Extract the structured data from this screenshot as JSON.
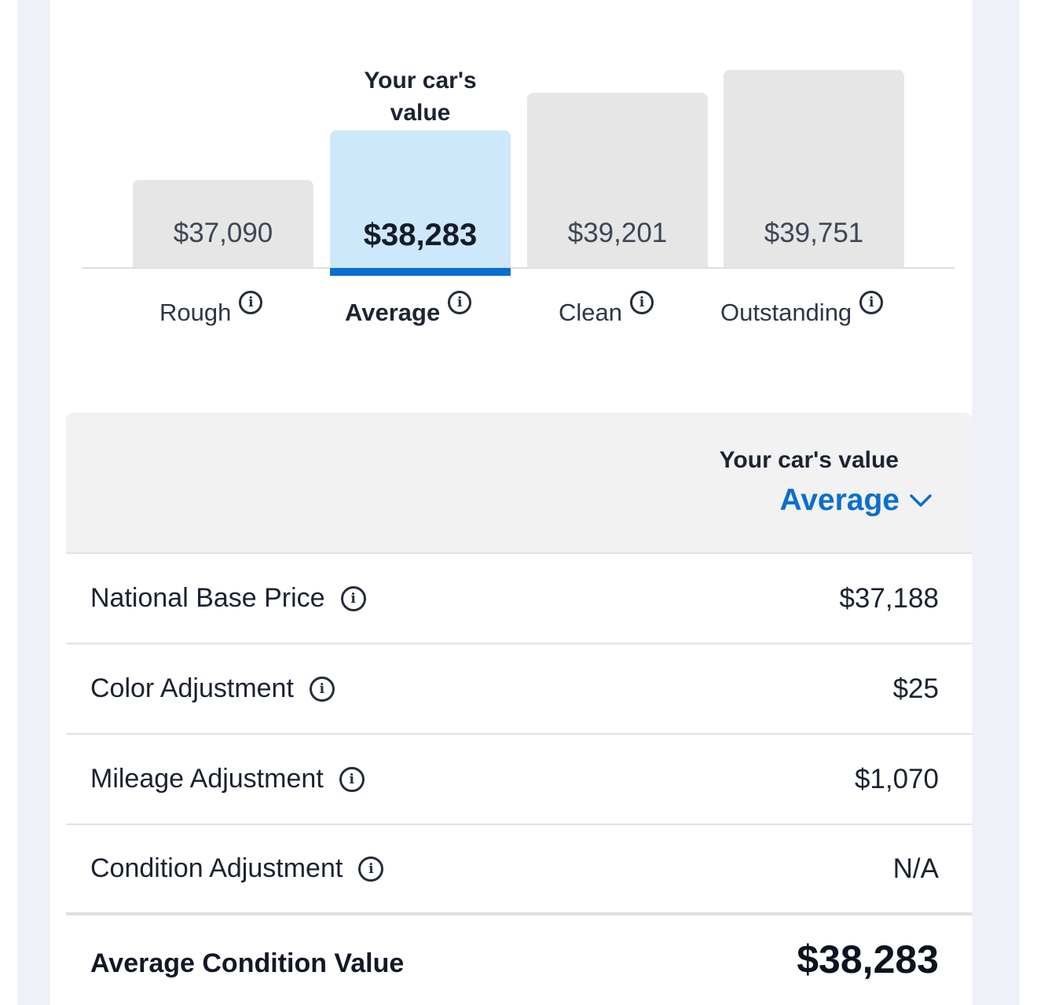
{
  "chart": {
    "caption_line1": "Your car's",
    "caption_line2": "value",
    "bars": [
      {
        "label": "Rough",
        "value": "$37,090",
        "amount": 37090,
        "selected": false
      },
      {
        "label": "Average",
        "value": "$38,283",
        "amount": 38283,
        "selected": true
      },
      {
        "label": "Clean",
        "value": "$39,201",
        "amount": 39201,
        "selected": false
      },
      {
        "label": "Outstanding",
        "value": "$39,751",
        "amount": 39751,
        "selected": false
      }
    ],
    "colors": {
      "selected_bar": "#cde7fb",
      "bar": "#e6e6e6",
      "accent": "#0a6fce"
    }
  },
  "table": {
    "header_label": "Your car's value",
    "selected_condition": "Average",
    "rows": [
      {
        "name": "National Base Price",
        "value": "$37,188",
        "icon": "info-icon"
      },
      {
        "name": "Color Adjustment",
        "value": "$25",
        "icon": "info-icon"
      },
      {
        "name": "Mileage Adjustment",
        "value": "$1,070",
        "icon": "info-icon"
      },
      {
        "name": "Condition Adjustment",
        "value": "N/A",
        "icon": "info-icon"
      }
    ],
    "total": {
      "name": "Average Condition Value",
      "value": "$38,283"
    }
  }
}
